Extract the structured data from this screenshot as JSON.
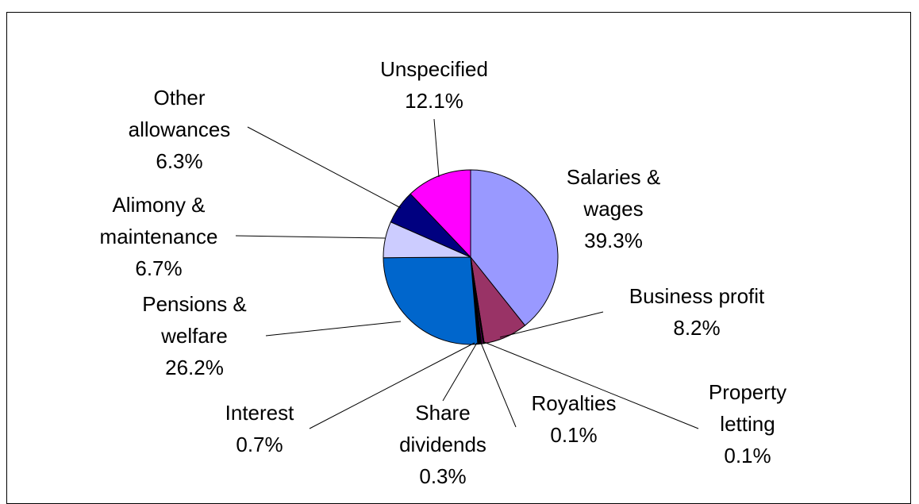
{
  "chart_data": {
    "type": "pie",
    "categories": [
      "Salaries & wages",
      "Business profit",
      "Property letting",
      "Royalties",
      "Share dividends",
      "Interest",
      "Pensions & welfare",
      "Alimony & maintenance",
      "Other allowances",
      "Unspecified"
    ],
    "values": [
      39.3,
      8.2,
      0.1,
      0.1,
      0.3,
      0.7,
      26.2,
      6.7,
      6.3,
      12.1
    ],
    "value_labels": [
      "39.3%",
      "8.2%",
      "0.1%",
      "0.1%",
      "0.3%",
      "0.7%",
      "26.2%",
      "6.7%",
      "6.3%",
      "12.1%"
    ],
    "colors": [
      "#9999ff",
      "#993366",
      "#ffffcc",
      "#ccffff",
      "#660066",
      "#000000",
      "#0066cc",
      "#ccccff",
      "#000080",
      "#ff00ff"
    ]
  }
}
